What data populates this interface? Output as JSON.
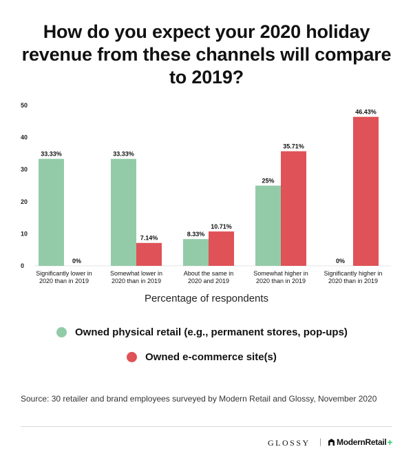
{
  "title": "How do you expect your 2020 holiday revenue from these channels will compare to 2019?",
  "colors": {
    "physical": "#93cba8",
    "ecommerce": "#df5257"
  },
  "chart_data": {
    "type": "bar",
    "title": "How do you expect your 2020 holiday revenue from these channels will compare to 2019?",
    "xlabel": "Percentage of respondents",
    "ylabel": "",
    "ylim": [
      0,
      50
    ],
    "yticks": [
      0,
      10,
      20,
      30,
      40,
      50
    ],
    "grid": false,
    "legend_position": "bottom",
    "categories": [
      [
        "Significantly lower in",
        "2020 than in 2019"
      ],
      [
        "Somewhat lower in",
        "2020 than in 2019"
      ],
      [
        "About the same in",
        "2020 and 2019"
      ],
      [
        "Somewhat higher in",
        "2020 than in 2019"
      ],
      [
        "Significantly higher in",
        "2020 than in 2019"
      ]
    ],
    "series": [
      {
        "name": "Owned physical retail (e.g., permanent stores, pop-ups)",
        "color": "#93cba8",
        "values": [
          33.33,
          33.33,
          8.33,
          25,
          0
        ],
        "labels": [
          "33.33%",
          "33.33%",
          "8.33%",
          "25%",
          "0%"
        ]
      },
      {
        "name": "Owned e-commerce site(s)",
        "color": "#df5257",
        "values": [
          0,
          7.14,
          10.71,
          35.71,
          46.43
        ],
        "labels": [
          "0%",
          "7.14%",
          "10.71%",
          "35.71%",
          "46.43%"
        ]
      }
    ]
  },
  "legend": {
    "physical": "Owned physical retail (e.g., permanent stores, pop-ups)",
    "ecommerce": "Owned e-commerce site(s)"
  },
  "source": "Source: 30 retailer and brand employees surveyed by Modern Retail and Glossy, November 2020",
  "brands": {
    "glossy": "GLOSSY",
    "separator": "|",
    "modern_retail": "ModernRetail",
    "plus": "+"
  }
}
